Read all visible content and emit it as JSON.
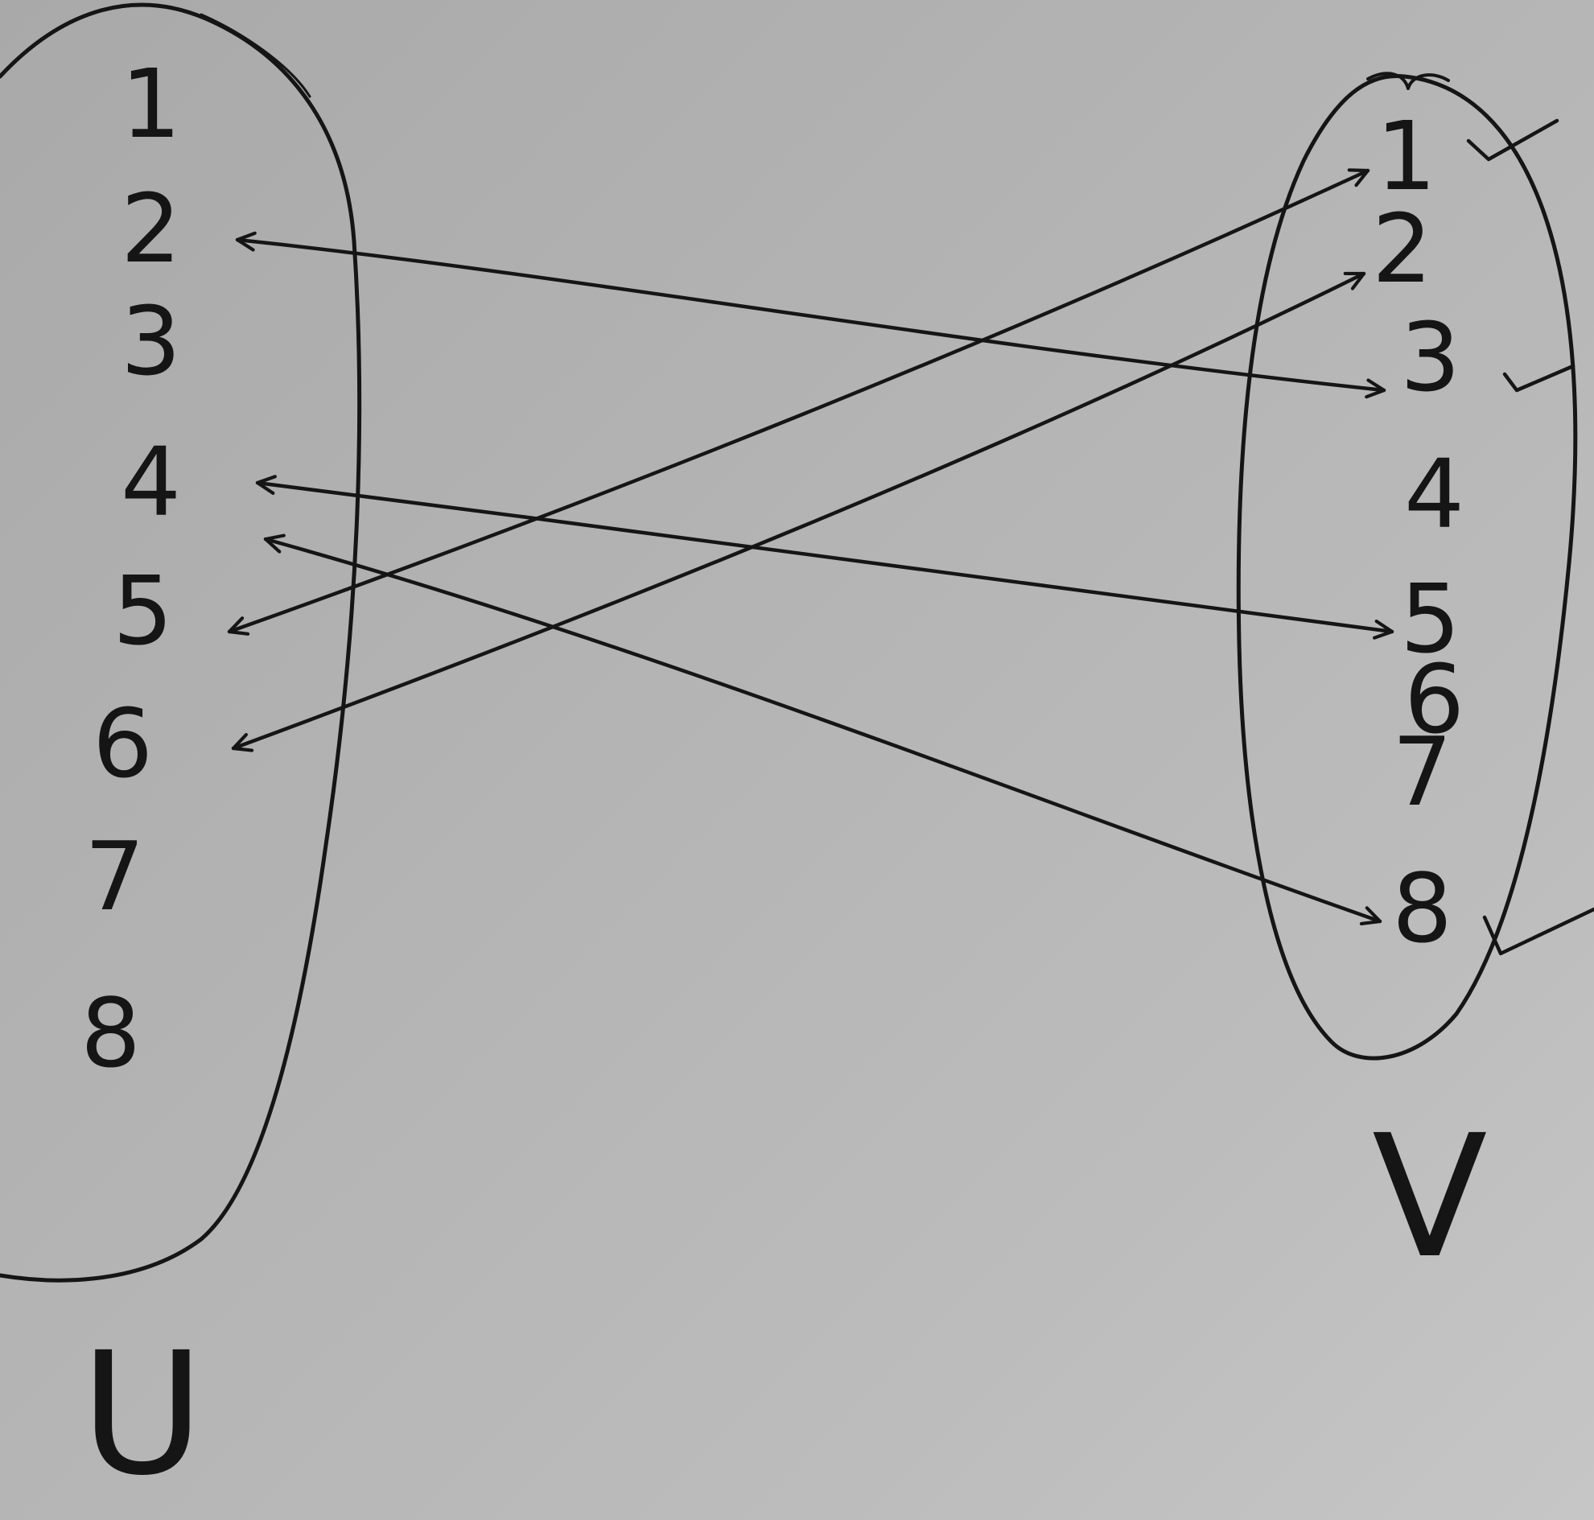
{
  "left_set": {
    "label": "U",
    "elements": [
      "1",
      "2",
      "3",
      "4",
      "5",
      "6",
      "7",
      "8"
    ]
  },
  "right_set": {
    "label": "V",
    "elements": [
      "1",
      "2",
      "3",
      "4",
      "5",
      "6",
      "7",
      "8"
    ]
  },
  "edges": [
    {
      "from": "2",
      "to": "3",
      "direction": "both"
    },
    {
      "from": "4",
      "to": "5",
      "direction": "both"
    },
    {
      "from": "4",
      "to": "8",
      "direction": "both"
    },
    {
      "from": "5",
      "to": "1",
      "direction": "both"
    },
    {
      "from": "6",
      "to": "2",
      "direction": "both"
    }
  ],
  "checkmarks": [
    "1",
    "3",
    "8"
  ],
  "ink_color": "#151515"
}
